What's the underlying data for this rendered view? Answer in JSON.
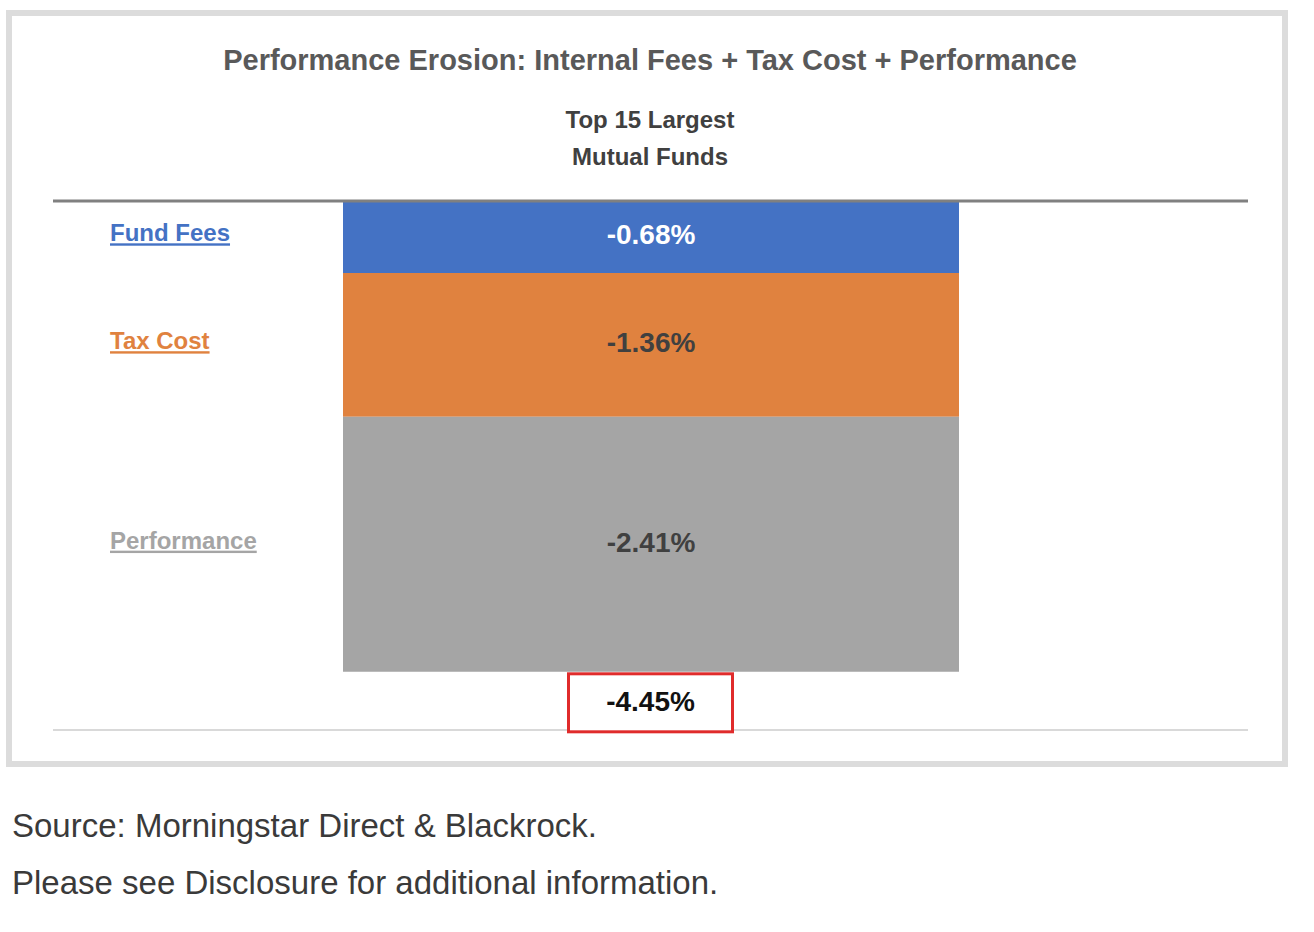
{
  "chart_data": {
    "type": "bar",
    "title": "Performance Erosion: Internal Fees + Tax Cost + Performance",
    "subtitle": "Top 15 Largest Mutual Funds",
    "series": [
      {
        "name": "Fund Fees",
        "color": "#4472c4",
        "values": [
          -0.68
        ],
        "value_labels": [
          "-0.68%"
        ]
      },
      {
        "name": "Tax Cost",
        "color": "#e0823f",
        "values": [
          -1.36
        ],
        "value_labels": [
          "-1.36%"
        ]
      },
      {
        "name": "Performance",
        "color": "#a5a5a5",
        "values": [
          -2.41
        ],
        "value_labels": [
          "-2.41%"
        ]
      }
    ],
    "total": {
      "value": -4.45,
      "label": "-4.45%"
    },
    "ylim": [
      -5,
      0
    ],
    "yticks": [
      -5,
      -4,
      -3,
      -2,
      -1,
      0
    ],
    "stacked": true,
    "grid": true,
    "data_labels": true,
    "tick_labels": false,
    "source": [
      "Source: Morningstar Direct & Blackrock.",
      "Please see Disclosure for additional information."
    ]
  }
}
